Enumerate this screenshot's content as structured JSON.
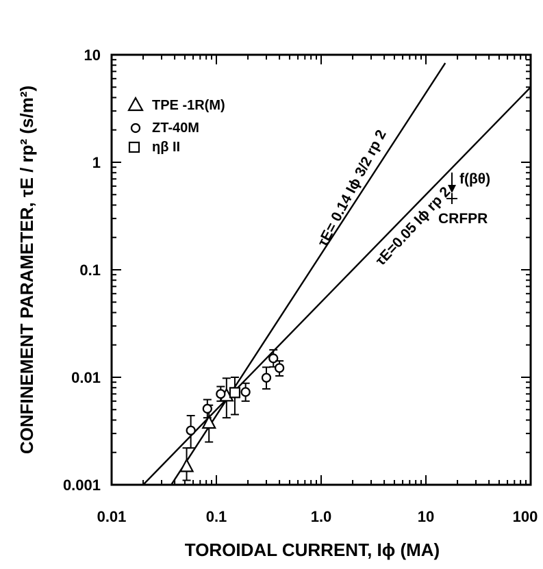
{
  "chart_data": {
    "type": "scatter",
    "xlabel": "TOROIDAL CURRENT, Iϕ (MA)",
    "ylabel": "CONFINEMENT PARAMETER, τE / rp² (s/m²)",
    "x_scale": "log",
    "y_scale": "log",
    "xlim": [
      0.01,
      100
    ],
    "ylim": [
      0.001,
      10
    ],
    "x_ticks": [
      {
        "value": 0.01,
        "label": "0.01"
      },
      {
        "value": 0.1,
        "label": "0.1"
      },
      {
        "value": 1,
        "label": "1.0"
      },
      {
        "value": 10,
        "label": "10"
      },
      {
        "value": 100,
        "label": "100"
      }
    ],
    "y_ticks": [
      {
        "value": 0.001,
        "label": "0.001"
      },
      {
        "value": 0.01,
        "label": "0.01"
      },
      {
        "value": 0.1,
        "label": "0.1"
      },
      {
        "value": 1,
        "label": "1"
      },
      {
        "value": 10,
        "label": "10"
      }
    ],
    "grid": false,
    "legend_position": "top-left",
    "series": [
      {
        "name": "TPE -1R(M)",
        "marker": "triangle",
        "points": [
          {
            "x": 0.052,
            "y": 0.0015,
            "ylo": 0.0011,
            "yhi": 0.0022
          },
          {
            "x": 0.085,
            "y": 0.0038,
            "ylo": 0.0025,
            "yhi": 0.0055
          },
          {
            "x": 0.125,
            "y": 0.0068,
            "ylo": 0.0042,
            "yhi": 0.0098
          }
        ]
      },
      {
        "name": "ZT-40M",
        "marker": "circle",
        "points": [
          {
            "x": 0.057,
            "y": 0.0032,
            "ylo": 0.0022,
            "yhi": 0.0044
          },
          {
            "x": 0.082,
            "y": 0.0051,
            "ylo": 0.0042,
            "yhi": 0.0062
          },
          {
            "x": 0.11,
            "y": 0.007,
            "ylo": 0.006,
            "yhi": 0.0082
          },
          {
            "x": 0.19,
            "y": 0.0073,
            "ylo": 0.006,
            "yhi": 0.0088
          },
          {
            "x": 0.3,
            "y": 0.0099,
            "ylo": 0.0078,
            "yhi": 0.0124
          },
          {
            "x": 0.35,
            "y": 0.015,
            "ylo": 0.0125,
            "yhi": 0.018
          },
          {
            "x": 0.4,
            "y": 0.0122,
            "ylo": 0.0103,
            "yhi": 0.0142
          }
        ]
      },
      {
        "name": "ηβ II",
        "marker": "square",
        "points": [
          {
            "x": 0.15,
            "y": 0.0072,
            "ylo": 0.0045,
            "yhi": 0.01
          }
        ]
      }
    ],
    "lines": [
      {
        "label": "τE= 0.14 Iϕ 3/2 rp 2",
        "coefficient": 0.14,
        "exponent": 1.5,
        "x_range": [
          0.0183,
          15.3
        ]
      },
      {
        "label": "τE=0.05 Iϕ rp 2",
        "coefficient": 0.05,
        "exponent": 1.0,
        "x_range": [
          0.0194,
          100
        ]
      }
    ],
    "annotations": [
      {
        "text": "f(βθ)",
        "x": 18,
        "y": 0.8,
        "arrow": "down"
      },
      {
        "text": "CRFPR",
        "x": 18,
        "y": 0.43,
        "marker": "plus"
      }
    ]
  }
}
